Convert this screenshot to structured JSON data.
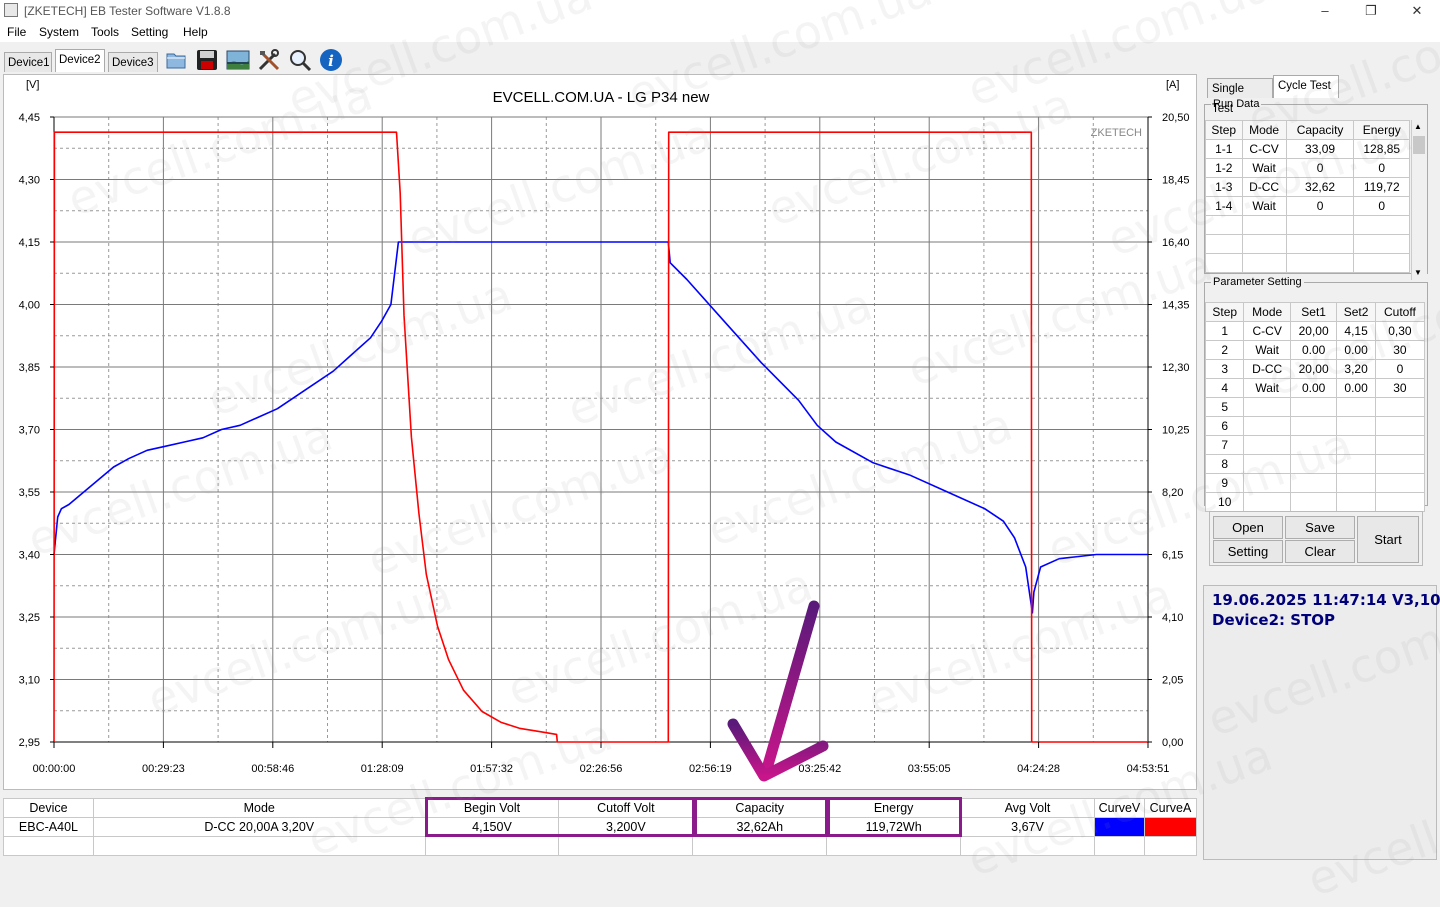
{
  "window": {
    "title": "[ZKETECH] EB Tester Software V1.8.8",
    "controls": [
      "minimize-icon",
      "maximize-icon",
      "close-icon"
    ]
  },
  "menu": [
    "File",
    "System",
    "Tools",
    "Setting",
    "Help"
  ],
  "device_tabs": [
    {
      "label": "Device1",
      "active": false
    },
    {
      "label": "Device2",
      "active": true
    },
    {
      "label": "Device3",
      "active": false
    }
  ],
  "toolbar_icons": [
    "folder-icon",
    "save-icon",
    "image-icon",
    "tools-icon",
    "search-icon",
    "info-icon"
  ],
  "watermark": "evcell.com.ua",
  "chart": {
    "brand": "ZKETECH"
  },
  "chart_data": {
    "type": "line",
    "title": "EVCELL.COM.UA - LG P34 new",
    "y_left_unit": "[V]",
    "y_right_unit": "[A]",
    "y_left_ticks": [
      "4,45",
      "4,30",
      "4,15",
      "4,00",
      "3,85",
      "3,70",
      "3,55",
      "3,40",
      "3,25",
      "3,10",
      "2,95"
    ],
    "y_right_ticks": [
      "20,50",
      "18,45",
      "16,40",
      "14,35",
      "12,30",
      "10,25",
      "8,20",
      "6,15",
      "4,10",
      "2,05",
      "0,00"
    ],
    "x_ticks": [
      "00:00:00",
      "00:29:23",
      "00:58:46",
      "01:28:09",
      "01:57:32",
      "02:26:56",
      "02:56:19",
      "03:25:42",
      "03:55:05",
      "04:24:28",
      "04:53:51"
    ],
    "ylim_left": [
      2.95,
      4.45
    ],
    "ylim_right": [
      0,
      20.5
    ],
    "xlim_min": [
      0,
      293.85
    ],
    "grid": true,
    "series": [
      {
        "name": "CurveV",
        "color": "#0000ff",
        "axis": "left",
        "points": [
          [
            0,
            3.4
          ],
          [
            1,
            3.49
          ],
          [
            2,
            3.51
          ],
          [
            4,
            3.52
          ],
          [
            8,
            3.55
          ],
          [
            12,
            3.58
          ],
          [
            16,
            3.61
          ],
          [
            20,
            3.63
          ],
          [
            25,
            3.65
          ],
          [
            30,
            3.66
          ],
          [
            35,
            3.67
          ],
          [
            40,
            3.68
          ],
          [
            45,
            3.7
          ],
          [
            50,
            3.71
          ],
          [
            55,
            3.73
          ],
          [
            60,
            3.75
          ],
          [
            65,
            3.78
          ],
          [
            70,
            3.81
          ],
          [
            75,
            3.84
          ],
          [
            80,
            3.88
          ],
          [
            85,
            3.92
          ],
          [
            88,
            3.96
          ],
          [
            90.5,
            4.0
          ],
          [
            92.5,
            4.15
          ],
          [
            165,
            4.15
          ],
          [
            165.5,
            4.1
          ],
          [
            170,
            4.06
          ],
          [
            180,
            3.96
          ],
          [
            190,
            3.86
          ],
          [
            200,
            3.77
          ],
          [
            205,
            3.71
          ],
          [
            210,
            3.67
          ],
          [
            220,
            3.62
          ],
          [
            230,
            3.59
          ],
          [
            240,
            3.55
          ],
          [
            250,
            3.51
          ],
          [
            255,
            3.48
          ],
          [
            258,
            3.44
          ],
          [
            261,
            3.37
          ],
          [
            262.8,
            3.26
          ],
          [
            263.2,
            3.31
          ],
          [
            265,
            3.37
          ],
          [
            270,
            3.39
          ],
          [
            280,
            3.4
          ],
          [
            293.85,
            3.4
          ]
        ]
      },
      {
        "name": "CurveA",
        "color": "#ff0000",
        "axis": "right",
        "points": [
          [
            0,
            0
          ],
          [
            0.1,
            20.0
          ],
          [
            92,
            20.0
          ],
          [
            93,
            18.0
          ],
          [
            94,
            14.0
          ],
          [
            96,
            10.0
          ],
          [
            98,
            7.5
          ],
          [
            100,
            5.5
          ],
          [
            103,
            3.8
          ],
          [
            106,
            2.7
          ],
          [
            110,
            1.7
          ],
          [
            115,
            1.0
          ],
          [
            120,
            0.65
          ],
          [
            125,
            0.45
          ],
          [
            130,
            0.35
          ],
          [
            135,
            0.25
          ],
          [
            135.2,
            0
          ],
          [
            165,
            0
          ],
          [
            165.1,
            20.0
          ],
          [
            262.5,
            20.0
          ],
          [
            262.6,
            0
          ],
          [
            293.85,
            0
          ]
        ]
      }
    ]
  },
  "right_panel": {
    "tabs": [
      {
        "label": "Single Test",
        "active": false
      },
      {
        "label": "Cycle Test",
        "active": true
      }
    ],
    "run_data": {
      "legend": "Run Data",
      "columns": [
        "Step",
        "Mode",
        "Capacity",
        "Energy"
      ],
      "rows": [
        [
          "1-1",
          "C-CV",
          "33,09",
          "128,85"
        ],
        [
          "1-2",
          "Wait",
          "0",
          "0"
        ],
        [
          "1-3",
          "D-CC",
          "32,62",
          "119,72"
        ],
        [
          "1-4",
          "Wait",
          "0",
          "0"
        ]
      ]
    },
    "parameter_setting": {
      "legend": "Parameter Setting",
      "columns": [
        "Step",
        "Mode",
        "Set1",
        "Set2",
        "Cutoff"
      ],
      "rows": [
        [
          "1",
          "C-CV",
          "20,00",
          "4,15",
          "0,30"
        ],
        [
          "2",
          "Wait",
          "0.00",
          "0.00",
          "30"
        ],
        [
          "3",
          "D-CC",
          "20,00",
          "3,20",
          "0"
        ],
        [
          "4",
          "Wait",
          "0.00",
          "0.00",
          "30"
        ],
        [
          "5",
          "",
          "",
          "",
          ""
        ],
        [
          "6",
          "",
          "",
          "",
          ""
        ],
        [
          "7",
          "",
          "",
          "",
          ""
        ],
        [
          "8",
          "",
          "",
          "",
          ""
        ],
        [
          "9",
          "",
          "",
          "",
          ""
        ],
        [
          "10",
          "",
          "",
          "",
          ""
        ]
      ]
    },
    "buttons": {
      "open": "Open",
      "save": "Save",
      "setting": "Setting",
      "clear": "Clear",
      "start": "Start"
    },
    "status": {
      "datetime": "19.06.2025 11:47:14  V3,10",
      "device_status": "Device2: STOP"
    }
  },
  "summary": {
    "headers": [
      "Device",
      "Mode",
      "Begin Volt",
      "Cutoff Volt",
      "Capacity",
      "Energy",
      "Avg Volt",
      "CurveV",
      "CurveA"
    ],
    "values": [
      "EBC-A40L",
      "D-CC  20,00A  3,20V",
      "4,150V",
      "3,200V",
      "32,62Ah",
      "119,72Wh",
      "3,67V",
      "",
      ""
    ],
    "curve_colors": [
      "#0000ff",
      "#ff0000"
    ]
  },
  "annotation": {
    "arrow_color": "#9b1a86",
    "highlight_color": "#8b1a8b"
  }
}
